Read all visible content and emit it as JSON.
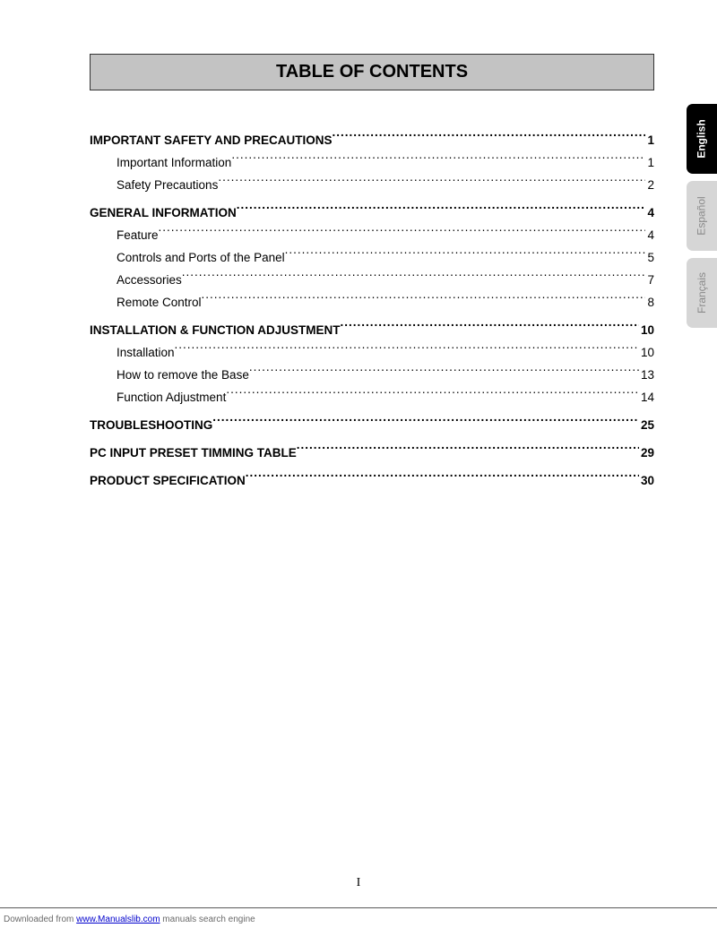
{
  "title": "TABLE OF CONTENTS",
  "page_number": "I",
  "colors": {
    "title_bg": "#c3c3c3",
    "title_border": "#333333",
    "tab_active_bg": "#000000",
    "tab_active_fg": "#ffffff",
    "tab_inactive_bg": "#d6d6d6",
    "tab_inactive_fg": "#8a8a8a",
    "footer_rule": "#5a5a5a",
    "footer_text": "#6a6a6a",
    "link": "#0000cc"
  },
  "language_tabs": [
    {
      "label": "English",
      "active": true
    },
    {
      "label": "Español",
      "active": false
    },
    {
      "label": "Français",
      "active": false
    }
  ],
  "toc": [
    {
      "label": "IMPORTANT SAFETY AND PRECAUTIONS",
      "page": "1",
      "level": 0
    },
    {
      "label": "Important Information",
      "page": "1",
      "level": 1
    },
    {
      "label": "Safety Precautions",
      "page": "2",
      "level": 1
    },
    {
      "label": "GENERAL INFORMATION",
      "page": "4",
      "level": 0
    },
    {
      "label": "Feature",
      "page": "4",
      "level": 1
    },
    {
      "label": "Controls and Ports of the Panel",
      "page": "5",
      "level": 1
    },
    {
      "label": "Accessories",
      "page": "7",
      "level": 1
    },
    {
      "label": "Remote Control",
      "page": "8",
      "level": 1
    },
    {
      "label": "INSTALLATION & FUNCTION ADJUSTMENT",
      "page": "10",
      "level": 0
    },
    {
      "label": "Installation",
      "page": "10",
      "level": 1
    },
    {
      "label": "How to remove the Base",
      "page": "13",
      "level": 1
    },
    {
      "label": "Function Adjustment",
      "page": "14",
      "level": 1
    },
    {
      "label": "TROUBLESHOOTING",
      "page": "25",
      "level": 0
    },
    {
      "label": "PC INPUT PRESET TIMMING TABLE",
      "page": "29",
      "level": 0
    },
    {
      "label": "PRODUCT SPECIFICATION",
      "page": "30",
      "level": 0
    }
  ],
  "footer": {
    "prefix": "Downloaded from ",
    "link_text": "www.Manualslib.com",
    "suffix": " manuals search engine"
  }
}
